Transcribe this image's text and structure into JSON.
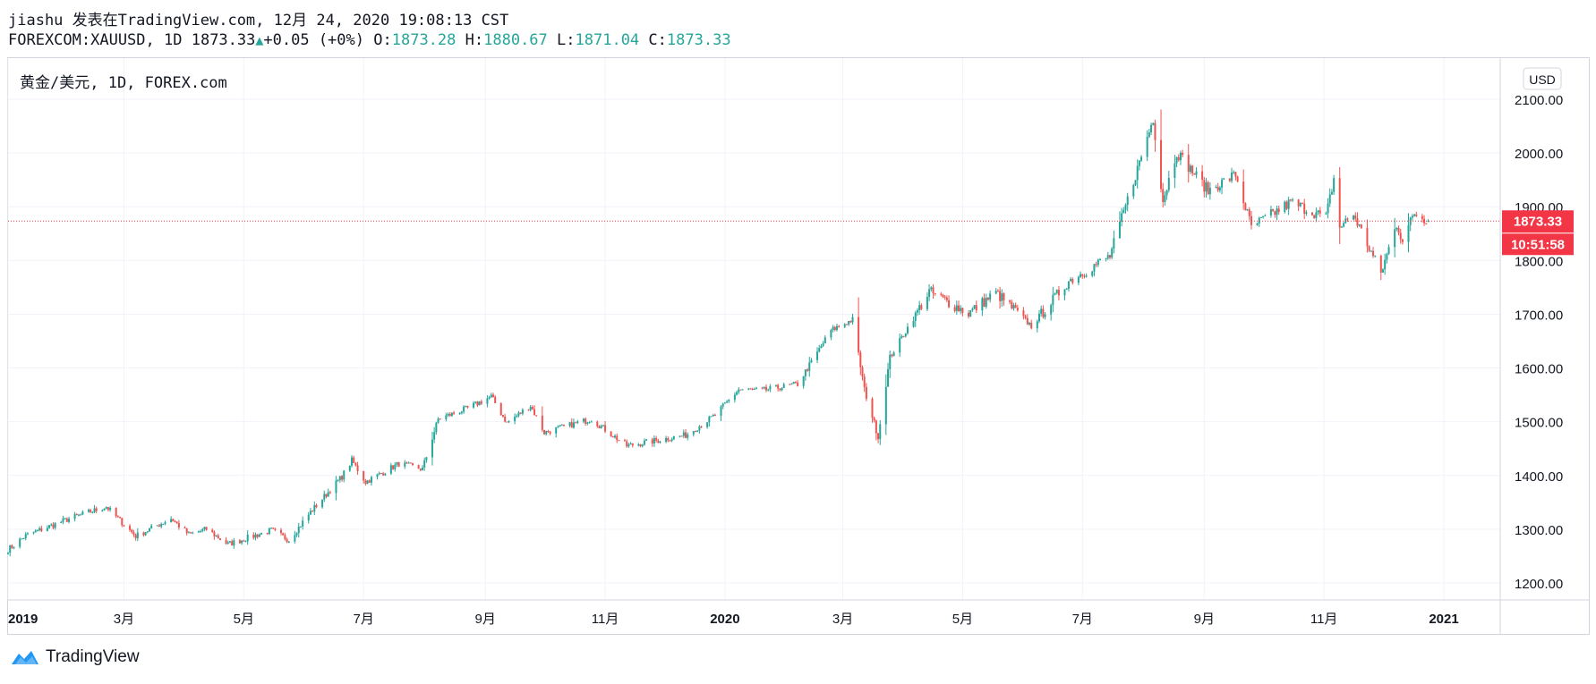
{
  "header": {
    "line1": "jiashu 发表在TradingView.com, 12月 24, 2020 19:08:13 CST",
    "symbol": "FOREXCOM:XAUUSD, 1D",
    "last": "1873.33",
    "change": "+0.05 (+0%)",
    "o_label": "O:",
    "o": "1873.28",
    "h_label": "H:",
    "h": "1880.67",
    "l_label": "L:",
    "l": "1871.04",
    "c_label": "C:",
    "c": "1873.33"
  },
  "pane": {
    "legend": "黄金/美元, 1D, FOREX.com",
    "currency": "USD",
    "price_tag": "1873.33",
    "countdown": "10:51:58"
  },
  "footer": {
    "brand": "TradingView"
  },
  "colors": {
    "up": "#26a69a",
    "down": "#ef5350",
    "tag": "#f23645",
    "grid": "#f0f3fa"
  },
  "chart_data": {
    "type": "candlestick",
    "title": "黄金/美元, 1D, FOREX.com",
    "ylabel": "USD",
    "ylim": [
      1180,
      2180
    ],
    "xlim": [
      "2019-01-01",
      "2021-02-28"
    ],
    "y_ticks": [
      "1200.00",
      "1300.00",
      "1400.00",
      "1500.00",
      "1600.00",
      "1700.00",
      "1800.00",
      "1900.00",
      "2000.00",
      "2100.00"
    ],
    "x_ticks": [
      {
        "date": "2019-01-01",
        "label": "2019",
        "bold": true
      },
      {
        "date": "2019-03-01",
        "label": "3月"
      },
      {
        "date": "2019-05-01",
        "label": "5月"
      },
      {
        "date": "2019-07-01",
        "label": "7月"
      },
      {
        "date": "2019-09-01",
        "label": "9月"
      },
      {
        "date": "2019-11-01",
        "label": "11月"
      },
      {
        "date": "2020-01-01",
        "label": "2020",
        "bold": true
      },
      {
        "date": "2020-03-01",
        "label": "3月"
      },
      {
        "date": "2020-05-01",
        "label": "5月"
      },
      {
        "date": "2020-07-01",
        "label": "7月"
      },
      {
        "date": "2020-09-01",
        "label": "9月"
      },
      {
        "date": "2020-11-01",
        "label": "11月"
      },
      {
        "date": "2021-01-01",
        "label": "2021",
        "bold": true
      }
    ],
    "last_price": 1873.33,
    "close_path": [
      {
        "date": "2019-01-01",
        "close": 1262
      },
      {
        "date": "2019-01-10",
        "close": 1288
      },
      {
        "date": "2019-01-31",
        "close": 1318
      },
      {
        "date": "2019-02-20",
        "close": 1342
      },
      {
        "date": "2019-03-07",
        "close": 1287
      },
      {
        "date": "2019-03-25",
        "close": 1320
      },
      {
        "date": "2019-04-03",
        "close": 1290
      },
      {
        "date": "2019-04-12",
        "close": 1300
      },
      {
        "date": "2019-04-23",
        "close": 1272
      },
      {
        "date": "2019-05-15",
        "close": 1298
      },
      {
        "date": "2019-05-24",
        "close": 1280
      },
      {
        "date": "2019-06-04",
        "close": 1332
      },
      {
        "date": "2019-06-20",
        "close": 1398
      },
      {
        "date": "2019-06-25",
        "close": 1428
      },
      {
        "date": "2019-07-02",
        "close": 1388
      },
      {
        "date": "2019-07-19",
        "close": 1422
      },
      {
        "date": "2019-07-31",
        "close": 1412
      },
      {
        "date": "2019-08-08",
        "close": 1505
      },
      {
        "date": "2019-08-23",
        "close": 1525
      },
      {
        "date": "2019-09-04",
        "close": 1547
      },
      {
        "date": "2019-09-12",
        "close": 1498
      },
      {
        "date": "2019-09-24",
        "close": 1530
      },
      {
        "date": "2019-10-01",
        "close": 1480
      },
      {
        "date": "2019-10-25",
        "close": 1505
      },
      {
        "date": "2019-11-12",
        "close": 1455
      },
      {
        "date": "2019-12-12",
        "close": 1475
      },
      {
        "date": "2019-12-27",
        "close": 1512
      },
      {
        "date": "2020-01-08",
        "close": 1560
      },
      {
        "date": "2020-01-20",
        "close": 1558
      },
      {
        "date": "2020-02-07",
        "close": 1570
      },
      {
        "date": "2020-02-24",
        "close": 1670
      },
      {
        "date": "2020-03-06",
        "close": 1690
      },
      {
        "date": "2020-03-12",
        "close": 1560
      },
      {
        "date": "2020-03-19",
        "close": 1472
      },
      {
        "date": "2020-03-25",
        "close": 1620
      },
      {
        "date": "2020-04-14",
        "close": 1742
      },
      {
        "date": "2020-05-04",
        "close": 1702
      },
      {
        "date": "2020-05-18",
        "close": 1740
      },
      {
        "date": "2020-06-05",
        "close": 1678
      },
      {
        "date": "2020-06-24",
        "close": 1762
      },
      {
        "date": "2020-07-15",
        "close": 1808
      },
      {
        "date": "2020-08-06",
        "close": 2064
      },
      {
        "date": "2020-08-11",
        "close": 1912
      },
      {
        "date": "2020-08-18",
        "close": 2002
      },
      {
        "date": "2020-09-03",
        "close": 1930
      },
      {
        "date": "2020-09-17",
        "close": 1960
      },
      {
        "date": "2020-09-25",
        "close": 1862
      },
      {
        "date": "2020-10-15",
        "close": 1908
      },
      {
        "date": "2020-11-02",
        "close": 1880
      },
      {
        "date": "2020-11-06",
        "close": 1952
      },
      {
        "date": "2020-11-09",
        "close": 1862
      },
      {
        "date": "2020-11-16",
        "close": 1886
      },
      {
        "date": "2020-11-30",
        "close": 1776
      },
      {
        "date": "2020-12-08",
        "close": 1868
      },
      {
        "date": "2020-12-11",
        "close": 1838
      },
      {
        "date": "2020-12-17",
        "close": 1888
      },
      {
        "date": "2020-12-24",
        "close": 1873.33
      }
    ]
  }
}
